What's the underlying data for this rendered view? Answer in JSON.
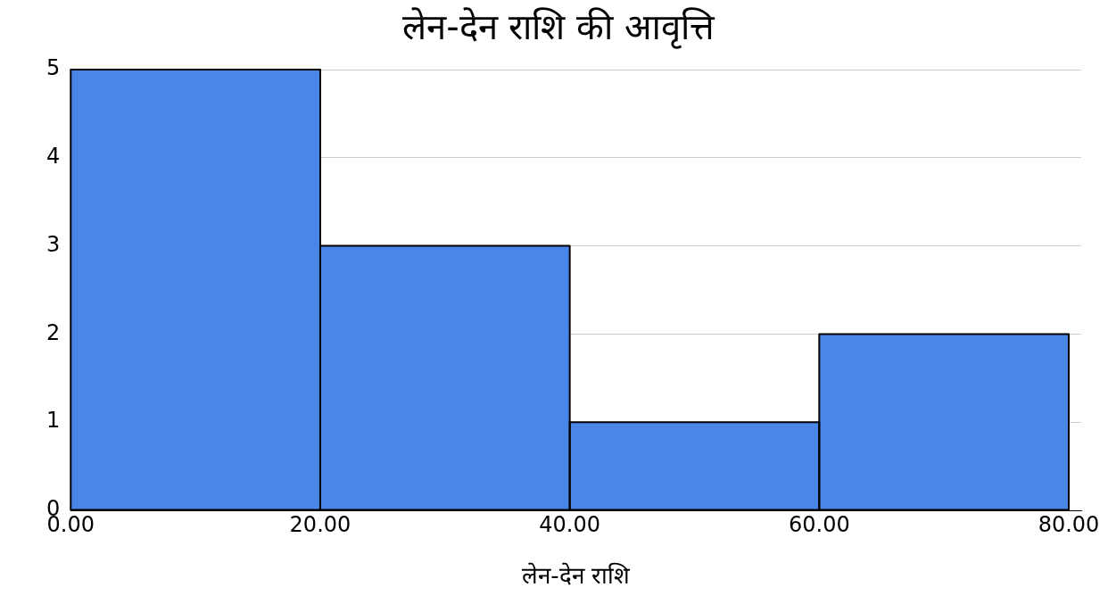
{
  "chart_data": {
    "type": "histogram",
    "title": "लेन-देन राशि की आवृत्ति",
    "xlabel": "लेन-देन राशि",
    "bins": [
      0,
      20,
      40,
      60,
      80
    ],
    "values": [
      5,
      3,
      1,
      2
    ],
    "color": "#4a86e8",
    "xlim": [
      0,
      81
    ],
    "xticks": [
      {
        "value": 0,
        "label": "0.00"
      },
      {
        "value": 20,
        "label": "20.00"
      },
      {
        "value": 40,
        "label": "40.00"
      },
      {
        "value": 60,
        "label": "60.00"
      },
      {
        "value": 80,
        "label": "80.00"
      }
    ],
    "ylim": [
      0,
      5
    ],
    "yticks": [
      0,
      1,
      2,
      3,
      4,
      5
    ],
    "grid": "y",
    "legend": false
  }
}
